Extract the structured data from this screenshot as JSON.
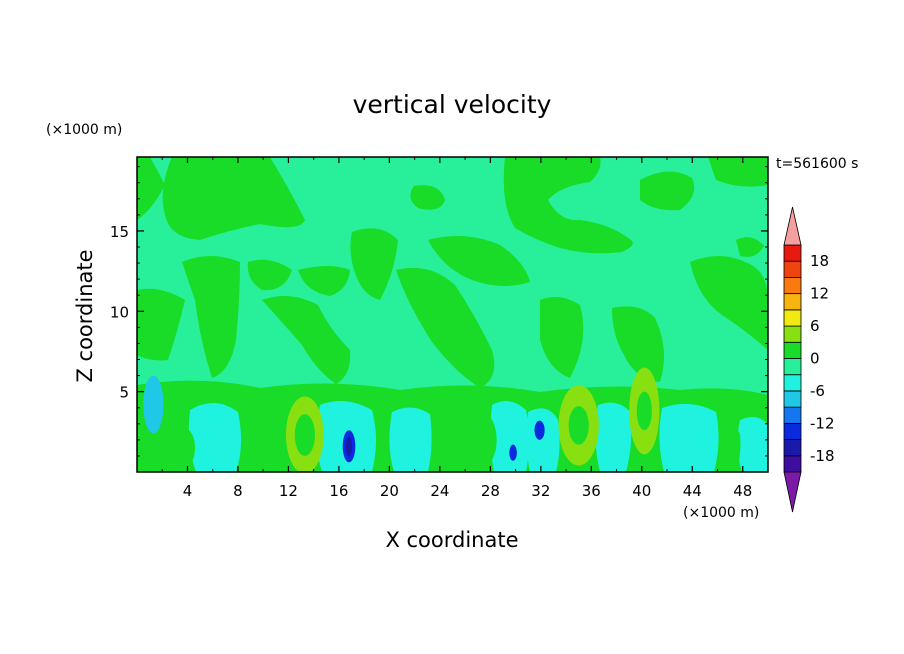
{
  "chart_data": {
    "type": "heatmap",
    "title": "vertical velocity",
    "xlabel": "X coordinate",
    "ylabel": "Z coordinate",
    "x_unit": "(×1000 m)",
    "y_unit": "(×1000 m)",
    "time_label": "t=561600 s",
    "xlim": [
      0,
      50
    ],
    "ylim": [
      0,
      19.6
    ],
    "x_ticks": [
      4,
      8,
      12,
      16,
      20,
      24,
      28,
      32,
      36,
      40,
      44,
      48
    ],
    "y_ticks": [
      5,
      10,
      15
    ],
    "colorbar": {
      "levels": [
        -21,
        -18,
        -15,
        -12,
        -9,
        -6,
        -3,
        0,
        3,
        6,
        9,
        12,
        15,
        18,
        21
      ],
      "tick_labels": [
        18,
        12,
        6,
        0,
        -6,
        -12,
        -18
      ],
      "colors": [
        "#7a1aa6",
        "#3d0ea0",
        "#1a1aaa",
        "#0a2ae0",
        "#1477f0",
        "#1ec8e6",
        "#20f2e0",
        "#28f09a",
        "#18dc28",
        "#88e010",
        "#f0ea10",
        "#f8b410",
        "#f87a10",
        "#f04410",
        "#e81a10",
        "#f4a0a0"
      ],
      "extend": "both"
    },
    "features": [
      {
        "x": 13.3,
        "z": 2.3,
        "w": 1.5,
        "h": 2.4,
        "v": 9
      },
      {
        "x": 13.3,
        "z": 2.3,
        "w": 0.8,
        "h": 1.3,
        "v": 8
      },
      {
        "x": 35.0,
        "z": 2.9,
        "w": 1.6,
        "h": 2.5,
        "v": 9
      },
      {
        "x": 35.0,
        "z": 2.9,
        "w": 0.8,
        "h": 1.2,
        "v": 8
      },
      {
        "x": 40.2,
        "z": 3.8,
        "w": 1.2,
        "h": 2.7,
        "v": 9
      },
      {
        "x": 40.2,
        "z": 3.8,
        "w": 0.6,
        "h": 1.2,
        "v": 8
      },
      {
        "x": 1.3,
        "z": 4.2,
        "w": 0.8,
        "h": 1.8,
        "v": 5
      },
      {
        "x": 3.8,
        "z": 1.5,
        "w": 0.8,
        "h": 1.2,
        "v": 8
      },
      {
        "x": 27.5,
        "z": 2.0,
        "w": 1.0,
        "h": 1.6,
        "v": 8
      },
      {
        "x": 16.8,
        "z": 1.6,
        "w": 0.5,
        "h": 1.0,
        "v": 3
      },
      {
        "x": 16.8,
        "z": 1.6,
        "w": 0.25,
        "h": 0.6,
        "v": 2
      },
      {
        "x": 31.9,
        "z": 2.6,
        "w": 0.4,
        "h": 0.6,
        "v": 3
      },
      {
        "x": 29.8,
        "z": 1.2,
        "w": 0.3,
        "h": 0.5,
        "v": 3
      }
    ]
  }
}
